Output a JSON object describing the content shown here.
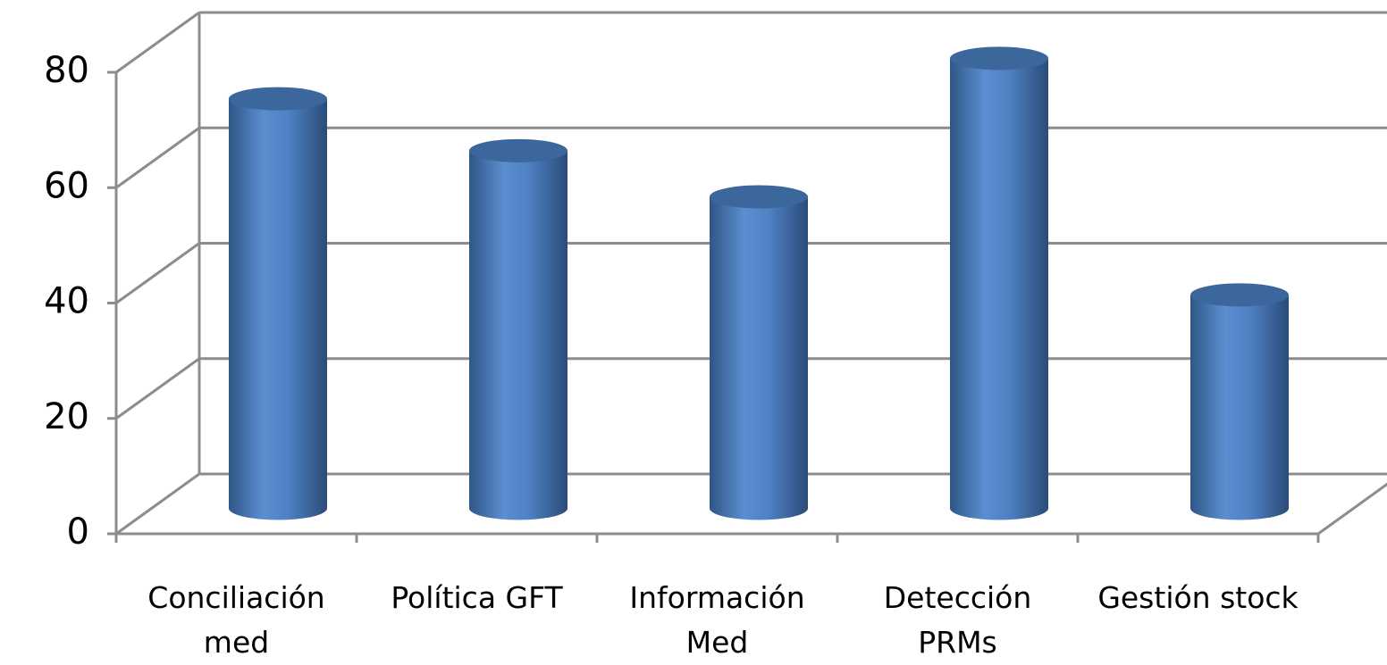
{
  "chart_data": {
    "type": "bar3d",
    "categories": [
      "Conciliación med",
      "Política GFT",
      "Información Med",
      "Detección PRMs",
      "Gestión stock"
    ],
    "values": [
      71,
      62,
      54,
      78,
      37
    ],
    "color": "#4f81bd",
    "ylim": [
      0,
      80
    ],
    "yticks": [
      0,
      20,
      40,
      60,
      80
    ],
    "grid": true
  }
}
